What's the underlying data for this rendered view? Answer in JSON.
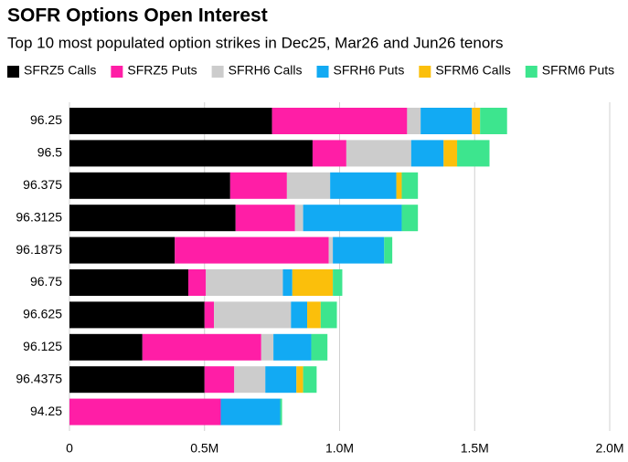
{
  "chart_data": {
    "type": "stacked_barh",
    "title": "SOFR Options Open Interest",
    "subtitle": "Top 10 most populated option strikes in Dec25, Mar26 and Jun26 tenors",
    "categories": [
      "96.25",
      "96.5",
      "96.375",
      "96.3125",
      "96.1875",
      "96.75",
      "96.625",
      "96.125",
      "96.4375",
      "94.25"
    ],
    "series": [
      {
        "name": "SFRZ5 Calls",
        "color": "#000000",
        "values": [
          750000,
          900000,
          595000,
          615000,
          390000,
          440000,
          500000,
          270000,
          500000,
          0
        ]
      },
      {
        "name": "SFRZ5 Puts",
        "color": "#ff1ea6",
        "values": [
          500000,
          125000,
          210000,
          220000,
          570000,
          65000,
          35000,
          440000,
          110000,
          560000
        ]
      },
      {
        "name": "SFRH6 Calls",
        "color": "#cccccc",
        "values": [
          50000,
          240000,
          160000,
          30000,
          15000,
          285000,
          285000,
          45000,
          115000,
          0
        ]
      },
      {
        "name": "SFRH6 Puts",
        "color": "#12aaf3",
        "values": [
          190000,
          120000,
          245000,
          365000,
          190000,
          35000,
          60000,
          140000,
          115000,
          220000
        ]
      },
      {
        "name": "SFRM6 Calls",
        "color": "#fbbf0b",
        "values": [
          30000,
          50000,
          20000,
          0,
          0,
          150000,
          50000,
          0,
          25000,
          0
        ]
      },
      {
        "name": "SFRM6 Puts",
        "color": "#3de58e",
        "values": [
          100000,
          120000,
          60000,
          60000,
          30000,
          35000,
          60000,
          60000,
          50000,
          7000
        ]
      }
    ],
    "xlim": [
      0,
      2000000
    ],
    "xticks": [
      0,
      {
        "value": 500000,
        "label": "0.5M"
      },
      {
        "value": 1000000,
        "label": "1.0M"
      },
      {
        "value": 1500000,
        "label": "1.5M"
      },
      {
        "value": 2000000,
        "label": "2.0M"
      }
    ],
    "grid": true
  }
}
